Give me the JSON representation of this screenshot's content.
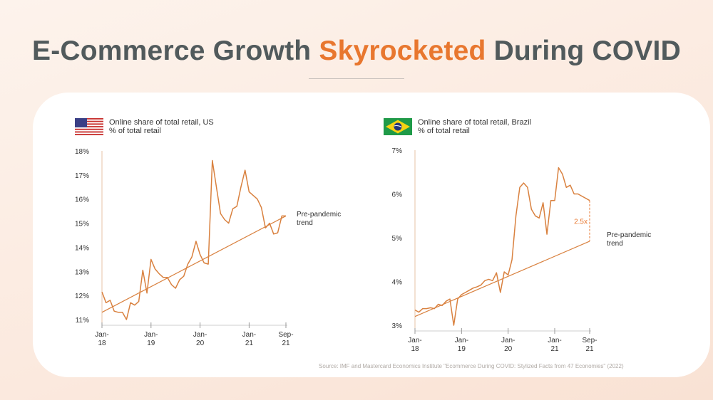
{
  "title": {
    "part1": "E-Commerce Growth ",
    "accent": "Skyrocketed",
    "part2": " During COVID"
  },
  "colors": {
    "accent": "#e8772f",
    "line": "#d9813f",
    "title": "#515a5c"
  },
  "source": "Source: IMF and Mastercard Economics Institute \"Ecommerce During COVID: Stylized Facts from 47 Economies\" (2022)",
  "chart_data": [
    {
      "type": "line",
      "title": "Online share of total retail, US",
      "subtitle": "% of total retail",
      "flag": "us-flag",
      "ylim": [
        11,
        18
      ],
      "yticks": [
        "11%",
        "12%",
        "13%",
        "14%",
        "15%",
        "16%",
        "17%",
        "18%"
      ],
      "xlim": [
        0,
        45
      ],
      "xticks": [
        {
          "x": 0,
          "l1": "Jan-",
          "l2": "18"
        },
        {
          "x": 12,
          "l1": "Jan-",
          "l2": "19"
        },
        {
          "x": 24,
          "l1": "Jan-",
          "l2": "20"
        },
        {
          "x": 36,
          "l1": "Jan-",
          "l2": "21"
        },
        {
          "x": 45,
          "l1": "Sep-",
          "l2": "21"
        }
      ],
      "series": [
        {
          "name": "Online share",
          "x": [
            0,
            1,
            2,
            3,
            4,
            5,
            6,
            7,
            8,
            9,
            10,
            11,
            12,
            13,
            14,
            15,
            16,
            17,
            18,
            19,
            20,
            21,
            22,
            23,
            24,
            25,
            26,
            27,
            28,
            29,
            30,
            31,
            32,
            33,
            34,
            35,
            36,
            37,
            38,
            39,
            40,
            41,
            42,
            43,
            44,
            45
          ],
          "values": [
            12.15,
            11.7,
            11.8,
            11.35,
            11.3,
            11.3,
            11.0,
            11.7,
            11.6,
            11.75,
            13.05,
            12.1,
            13.5,
            13.1,
            12.9,
            12.75,
            12.75,
            12.45,
            12.3,
            12.65,
            12.8,
            13.3,
            13.6,
            14.25,
            13.7,
            13.35,
            13.3,
            17.6,
            16.5,
            15.4,
            15.15,
            15.0,
            15.6,
            15.7,
            16.5,
            17.2,
            16.3,
            16.15,
            16.0,
            15.65,
            14.8,
            15.0,
            14.55,
            14.6,
            15.3,
            15.3
          ]
        }
      ],
      "trend": {
        "name": "Pre-pandemic trend",
        "label_l1": "Pre-pandemic",
        "label_l2": "trend",
        "x": [
          0,
          45
        ],
        "values": [
          11.3,
          15.3
        ]
      }
    },
    {
      "type": "line",
      "title": "Online share of total retail, Brazil",
      "subtitle": "% of total retail",
      "flag": "brazil-flag",
      "ylim": [
        3,
        7
      ],
      "yticks": [
        "3%",
        "4%",
        "5%",
        "6%",
        "7%"
      ],
      "xlim": [
        0,
        45
      ],
      "xticks": [
        {
          "x": 0,
          "l1": "Jan-",
          "l2": "18"
        },
        {
          "x": 12,
          "l1": "Jan-",
          "l2": "19"
        },
        {
          "x": 24,
          "l1": "Jan-",
          "l2": "20"
        },
        {
          "x": 36,
          "l1": "Jan-",
          "l2": "21"
        },
        {
          "x": 45,
          "l1": "Sep-",
          "l2": "21"
        }
      ],
      "series": [
        {
          "name": "Online share",
          "x": [
            0,
            1,
            2,
            3,
            4,
            5,
            6,
            7,
            8,
            9,
            10,
            11,
            12,
            13,
            14,
            15,
            16,
            17,
            18,
            19,
            20,
            21,
            22,
            23,
            24,
            25,
            26,
            27,
            28,
            29,
            30,
            31,
            32,
            33,
            34,
            35,
            36,
            37,
            38,
            39,
            40,
            41,
            42,
            43,
            44,
            45
          ],
          "values": [
            3.35,
            3.3,
            3.38,
            3.38,
            3.4,
            3.38,
            3.48,
            3.45,
            3.55,
            3.6,
            3.0,
            3.6,
            3.7,
            3.75,
            3.8,
            3.85,
            3.88,
            3.92,
            4.02,
            4.05,
            4.02,
            4.2,
            3.75,
            4.22,
            4.15,
            4.5,
            5.5,
            6.15,
            6.25,
            6.15,
            5.65,
            5.5,
            5.45,
            5.8,
            5.08,
            5.85,
            5.85,
            6.6,
            6.45,
            6.15,
            6.2,
            6.0,
            6.0,
            5.95,
            5.9,
            5.85
          ]
        }
      ],
      "trend": {
        "name": "Pre-pandemic trend",
        "label_l1": "Pre-pandemic",
        "label_l2": "trend",
        "x": [
          0,
          45
        ],
        "values": [
          3.2,
          4.92
        ]
      },
      "annotation": {
        "text": "2.5x",
        "x": 45,
        "from": 4.92,
        "to": 5.85
      }
    }
  ]
}
